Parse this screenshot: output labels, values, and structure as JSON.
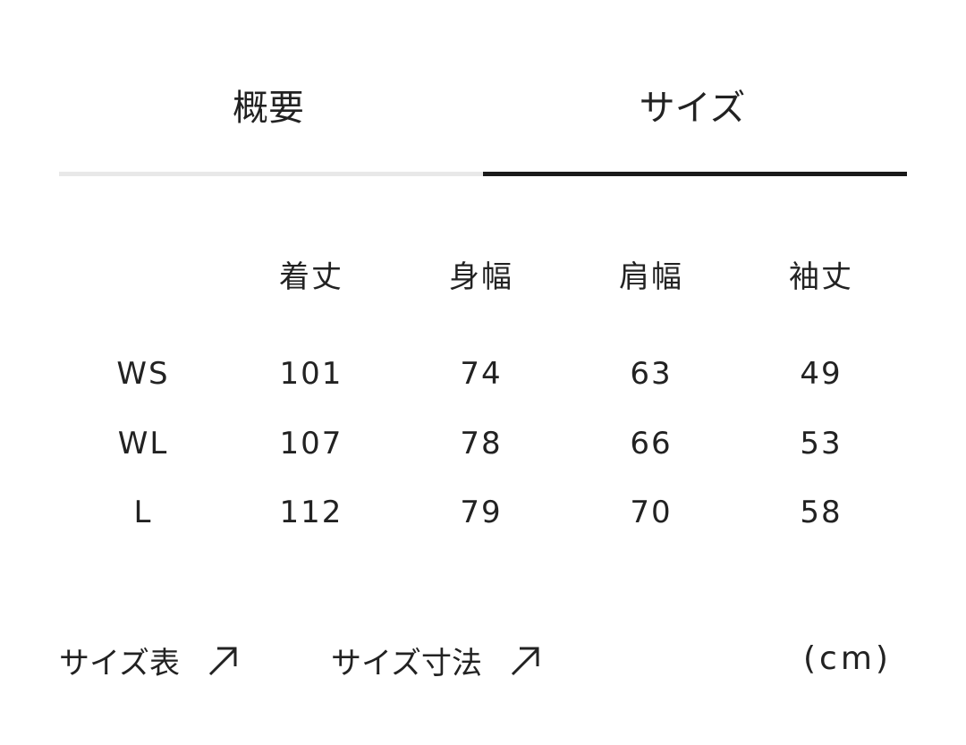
{
  "tabs": [
    {
      "label": "概要",
      "active": false
    },
    {
      "label": "サイズ",
      "active": true
    }
  ],
  "table": {
    "headers": [
      "",
      "着丈",
      "身幅",
      "肩幅",
      "袖丈"
    ],
    "rows": [
      [
        "WS",
        "101",
        "74",
        "63",
        "49"
      ],
      [
        "WL",
        "107",
        "78",
        "66",
        "53"
      ],
      [
        "L",
        "112",
        "79",
        "70",
        "58"
      ]
    ]
  },
  "links": [
    {
      "label": "サイズ表",
      "icon": "arrow-up-right-icon"
    },
    {
      "label": "サイズ寸法",
      "icon": "arrow-up-right-icon"
    }
  ],
  "unit": "(cm)"
}
